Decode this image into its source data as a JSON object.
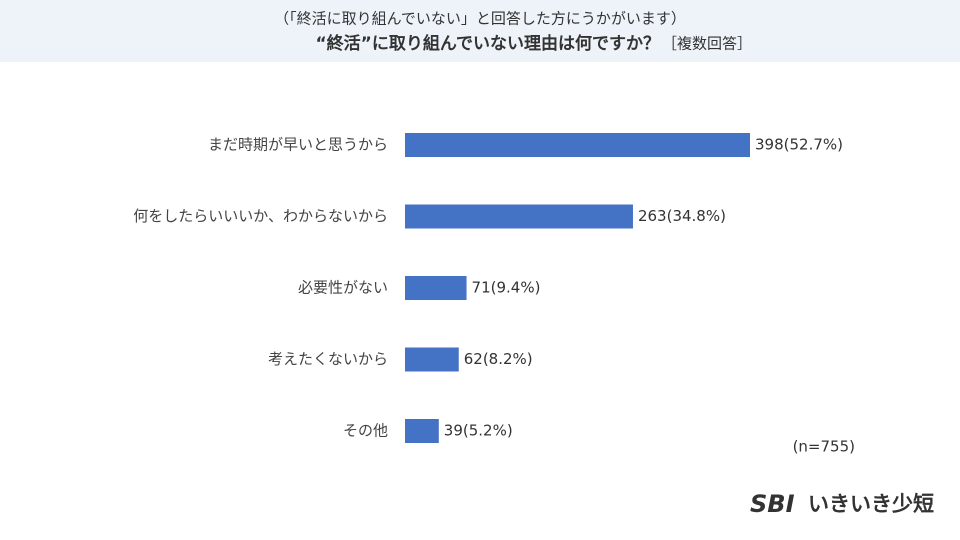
{
  "chart_data": {
    "type": "bar",
    "orientation": "horizontal",
    "subtitle": "（「終活に取り組んでいない」と回答した方にうかがいます）",
    "title": "“終活”に取り組んでいない理由は何ですか？",
    "title_note": "［複数回答］",
    "categories": [
      "まだ時期が早いと思うから",
      "何をしたらいいいか、わからないから",
      "必要性がない",
      "考えたくないから",
      "その他"
    ],
    "values": [
      398,
      263,
      71,
      62,
      39
    ],
    "value_labels": [
      "398(52.7%)",
      "263(34.8%)",
      "71(9.4%)",
      "62(8.2%)",
      "39(5.2%)"
    ],
    "color": "#4472c4",
    "annotation": "(n=755)"
  },
  "logo": {
    "mark": "SBI",
    "text": "いきいき少短"
  }
}
